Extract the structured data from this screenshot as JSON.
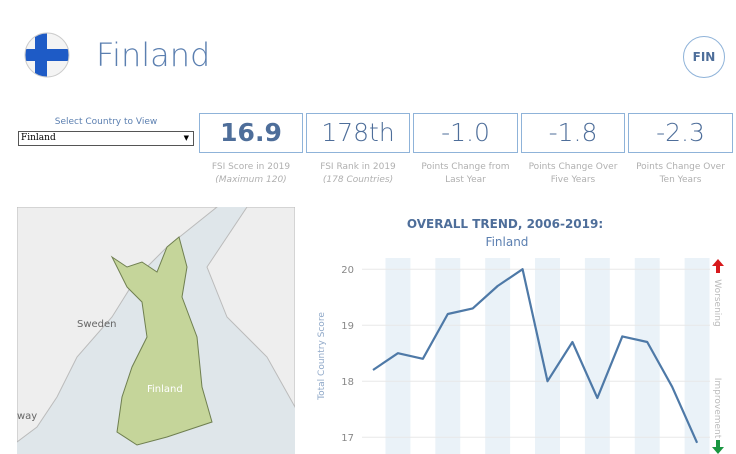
{
  "header": {
    "title": "Finland",
    "code": "FIN"
  },
  "selector": {
    "label": "Select Country to View",
    "selected": "Finland"
  },
  "kpis": [
    {
      "value": "16.9",
      "caption": "FSI Score in 2019",
      "note": "(Maximum 120)"
    },
    {
      "value": "178th",
      "caption": "FSI Rank in 2019",
      "note": "(178 Countries)"
    },
    {
      "value": "-1.0",
      "caption": "Points Change from Last Year"
    },
    {
      "value": "-1.8",
      "caption": "Points Change Over Five Years"
    },
    {
      "value": "-2.3",
      "caption": "Points Change Over Ten Years"
    }
  ],
  "map": {
    "labels": [
      "Sweden",
      "Finland",
      "way"
    ]
  },
  "chart_data": {
    "type": "line",
    "title": "OVERALL TREND, 2006-2019:",
    "subtitle": "Finland",
    "y_label": "Total Country Score",
    "top_label": "Worsening",
    "bottom_label": "Improvement",
    "categories": [
      null,
      null,
      null,
      null,
      null,
      null,
      null,
      null,
      null,
      null,
      null,
      null,
      null,
      null
    ],
    "series": [
      {
        "name": "Finland",
        "color": "#4e79a7",
        "values": [
          18.2,
          18.5,
          18.4,
          19.2,
          19.3,
          19.7,
          20.0,
          18.0,
          18.7,
          17.7,
          18.8,
          18.7,
          17.9,
          16.9
        ]
      }
    ],
    "ylim": [
      16.7,
      20.2
    ],
    "yticks": [
      17,
      18,
      19,
      20
    ],
    "grid": true
  }
}
